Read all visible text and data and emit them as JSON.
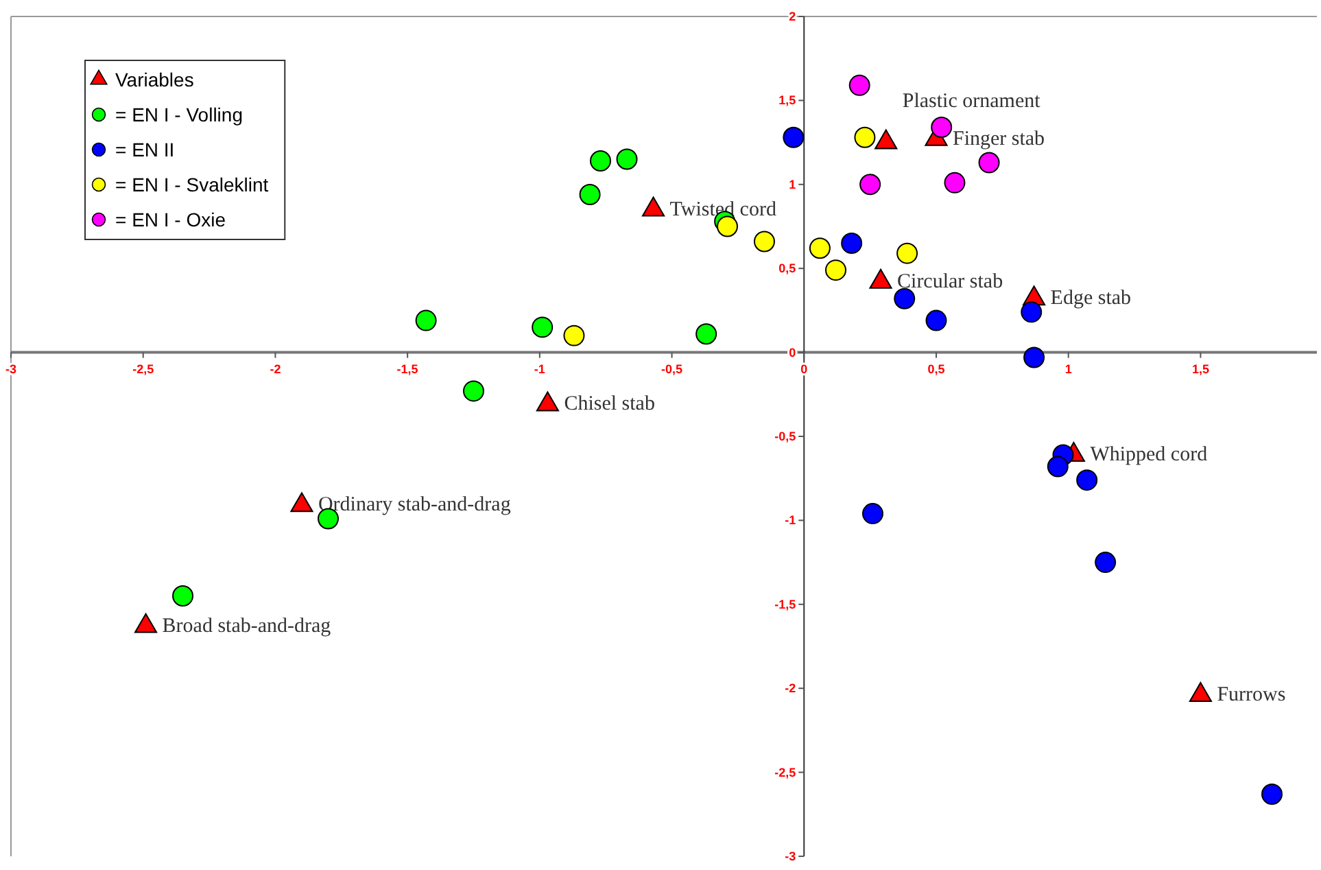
{
  "chart_data": {
    "type": "scatter",
    "xlim": [
      -3,
      1.94
    ],
    "xticks": [
      -3,
      {
        "value": -2.5,
        "label": "-2,5"
      },
      -2,
      {
        "value": -1.5,
        "label": "-1,5"
      },
      -1,
      {
        "value": -0.5,
        "label": "-0,5"
      },
      0,
      {
        "value": 0.5,
        "label": "0,5"
      },
      1,
      {
        "value": 1.5,
        "label": "1,5"
      }
    ],
    "ylim": [
      -3,
      2
    ],
    "yticks": [
      -3,
      {
        "value": -2.5,
        "label": "-2,5"
      },
      -2,
      {
        "value": -1.5,
        "label": "-1,5"
      },
      -1,
      {
        "value": -0.5,
        "label": "-0,5"
      },
      0,
      {
        "value": 0.5,
        "label": "0,5"
      },
      1,
      {
        "value": 1.5,
        "label": "1,5"
      },
      2
    ],
    "legend": "top left",
    "series": [
      {
        "name": "Variables",
        "color": "#ff0000",
        "marker": "triangle",
        "x": [
          0.31,
          0.5,
          -0.57,
          0.29,
          0.87,
          -0.97,
          1.02,
          -1.9,
          -2.49,
          1.5
        ],
        "values": [
          1.25,
          1.27,
          0.85,
          0.42,
          0.32,
          -0.31,
          -0.61,
          -0.91,
          -1.63,
          -2.04
        ]
      },
      {
        "name": "= EN I - Volling",
        "color": "#00ff00",
        "marker": "circle",
        "x": [
          -0.77,
          -0.67,
          -0.81,
          -1.43,
          -0.99,
          -1.25,
          -0.3,
          -0.37,
          -1.8,
          -2.35
        ],
        "values": [
          1.14,
          1.15,
          0.94,
          0.19,
          0.15,
          -0.23,
          0.78,
          0.11,
          -0.99,
          -1.45
        ]
      },
      {
        "name": "= EN II",
        "color": "#0000ff",
        "marker": "circle",
        "x": [
          -0.04,
          0.18,
          0.38,
          0.5,
          0.86,
          0.87,
          0.98,
          0.96,
          1.07,
          0.26,
          1.14,
          1.77
        ],
        "values": [
          1.28,
          0.65,
          0.32,
          0.19,
          0.24,
          -0.03,
          -0.61,
          -0.68,
          -0.76,
          -0.96,
          -1.25,
          -2.63
        ]
      },
      {
        "name": "= EN I - Svaleklint",
        "color": "#ffff00",
        "marker": "circle",
        "x": [
          -0.87,
          -0.29,
          -0.15,
          0.06,
          0.12,
          0.39,
          0.23
        ],
        "values": [
          0.1,
          0.75,
          0.66,
          0.62,
          0.49,
          0.59,
          1.28
        ]
      },
      {
        "name": "= EN I - Oxie",
        "color": "#ff00ff",
        "marker": "circle",
        "x": [
          0.21,
          0.52,
          0.7,
          0.25,
          0.57
        ],
        "values": [
          1.59,
          1.34,
          1.13,
          1.0,
          1.01
        ]
      }
    ],
    "annotations": [
      {
        "text": "Plastic ornament",
        "x": 0.31,
        "y": 1.25
      },
      {
        "text": "Finger stab",
        "x": 0.5,
        "y": 1.27
      },
      {
        "text": "Twisted cord",
        "x": -0.57,
        "y": 0.85
      },
      {
        "text": "Circular stab",
        "x": 0.29,
        "y": 0.42
      },
      {
        "text": "Edge stab",
        "x": 0.87,
        "y": 0.32
      },
      {
        "text": "Chisel stab",
        "x": -0.97,
        "y": -0.31
      },
      {
        "text": "Whipped cord",
        "x": 1.02,
        "y": -0.61
      },
      {
        "text": "Ordinary stab-and-drag",
        "x": -1.9,
        "y": -0.91
      },
      {
        "text": "Broad stab-and-drag",
        "x": -2.49,
        "y": -1.63
      },
      {
        "text": "Furrows",
        "x": 1.5,
        "y": -2.04
      }
    ]
  }
}
